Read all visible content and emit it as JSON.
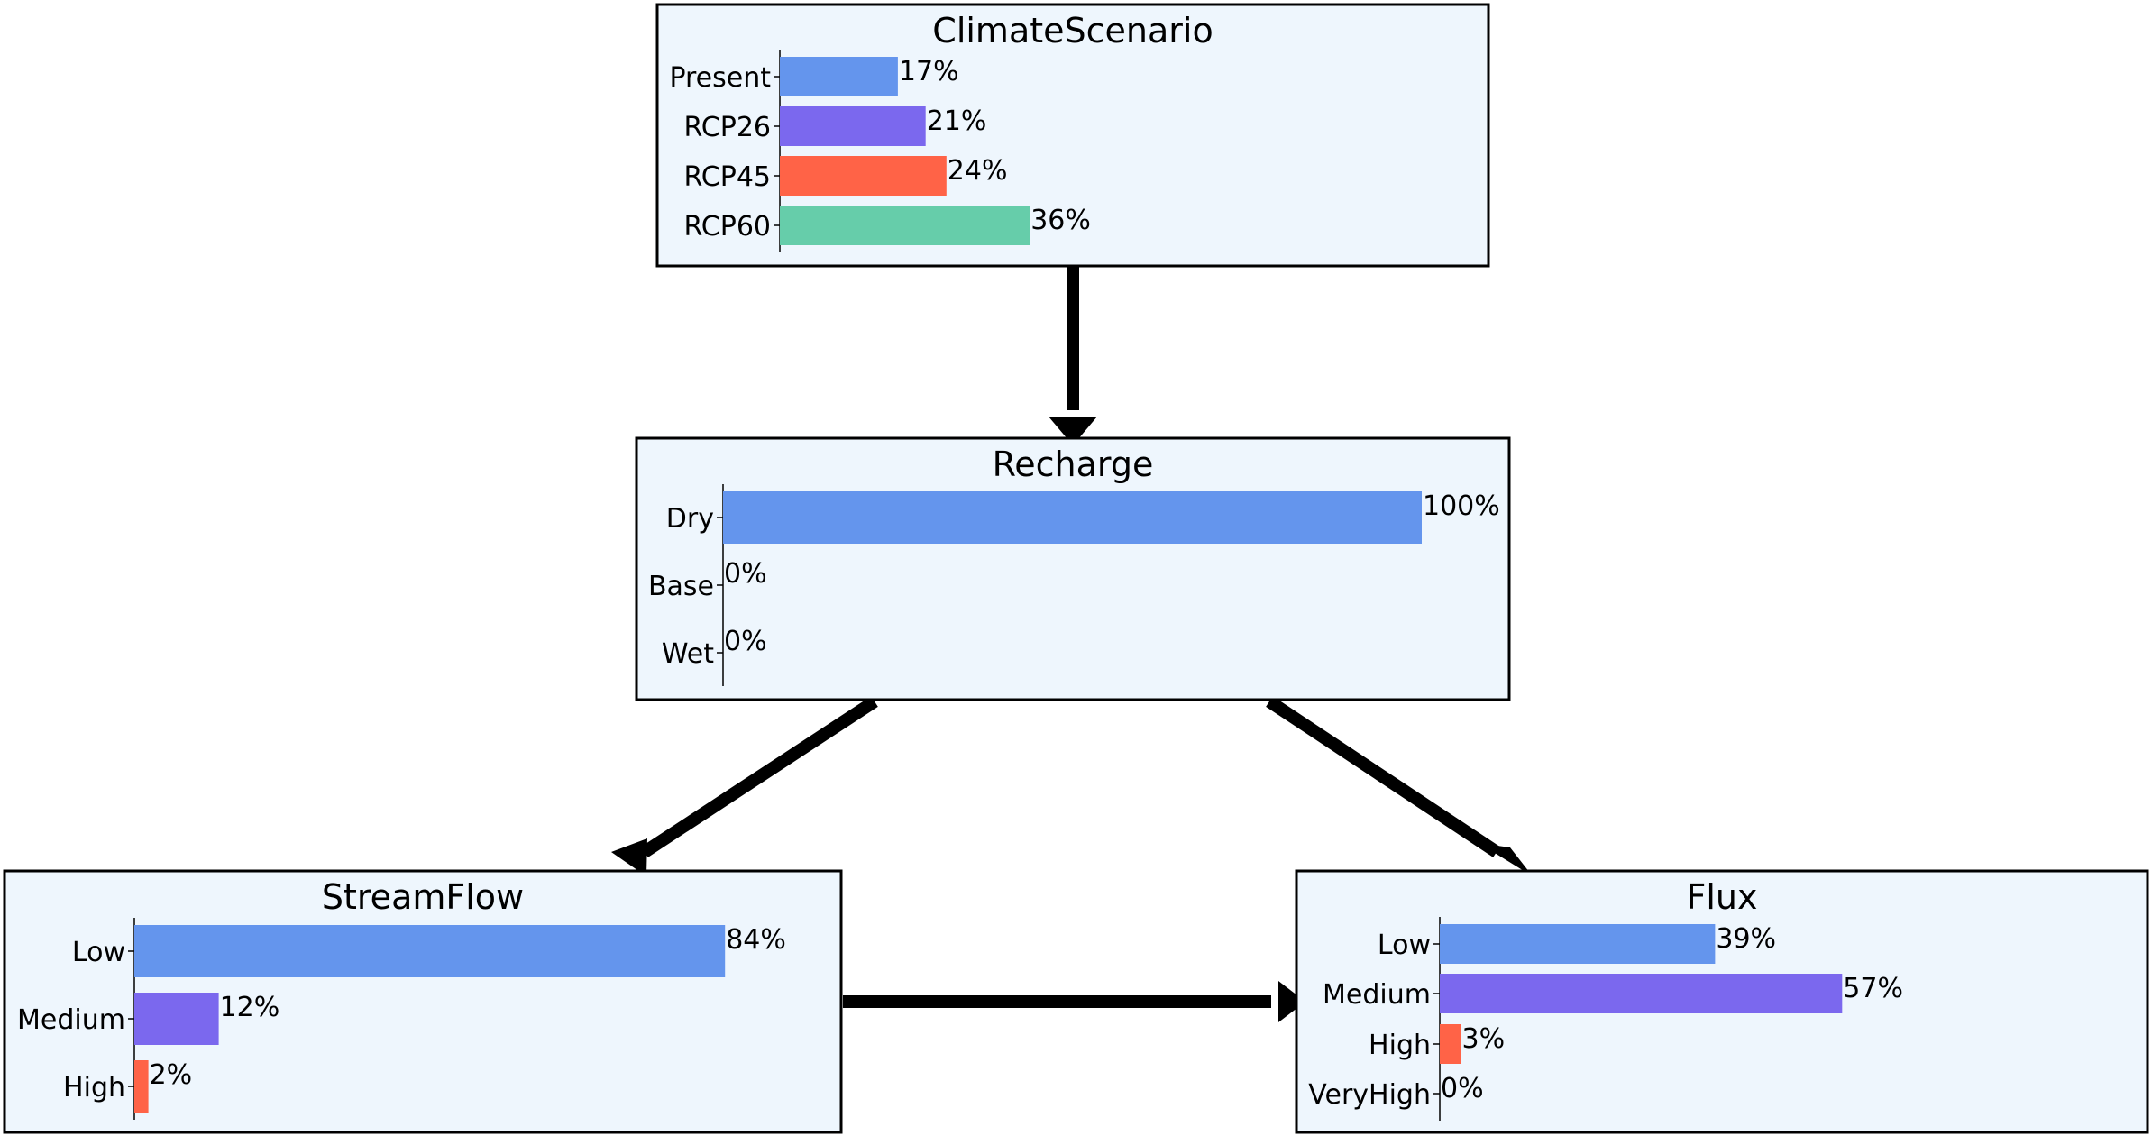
{
  "colors": {
    "box_fill": "#eef6fd",
    "bar_colors": [
      "#6495ed",
      "#7b68ee",
      "#ff6347",
      "#66cdaa"
    ]
  },
  "nodes": [
    {
      "id": "climatescenario",
      "title": "ClimateScenario",
      "states": [
        {
          "label": "Present",
          "value": 17,
          "value_label": "17%"
        },
        {
          "label": "RCP26",
          "value": 21,
          "value_label": "21%"
        },
        {
          "label": "RCP45",
          "value": 24,
          "value_label": "24%"
        },
        {
          "label": "RCP60",
          "value": 36,
          "value_label": "36%"
        }
      ]
    },
    {
      "id": "recharge",
      "title": "Recharge",
      "states": [
        {
          "label": "Dry",
          "value": 100,
          "value_label": "100%"
        },
        {
          "label": "Base",
          "value": 0,
          "value_label": "0%"
        },
        {
          "label": "Wet",
          "value": 0,
          "value_label": "0%"
        }
      ]
    },
    {
      "id": "streamflow",
      "title": "StreamFlow",
      "states": [
        {
          "label": "Low",
          "value": 84,
          "value_label": "84%"
        },
        {
          "label": "Medium",
          "value": 12,
          "value_label": "12%"
        },
        {
          "label": "High",
          "value": 2,
          "value_label": "2%"
        }
      ]
    },
    {
      "id": "flux",
      "title": "Flux",
      "states": [
        {
          "label": "Low",
          "value": 39,
          "value_label": "39%"
        },
        {
          "label": "Medium",
          "value": 57,
          "value_label": "57%"
        },
        {
          "label": "High",
          "value": 3,
          "value_label": "3%"
        },
        {
          "label": "VeryHigh",
          "value": 0,
          "value_label": "0%"
        }
      ]
    }
  ],
  "edges": [
    {
      "from": "ClimateScenario",
      "to": "Recharge"
    },
    {
      "from": "Recharge",
      "to": "StreamFlow"
    },
    {
      "from": "Recharge",
      "to": "Flux"
    },
    {
      "from": "StreamFlow",
      "to": "Flux"
    }
  ]
}
